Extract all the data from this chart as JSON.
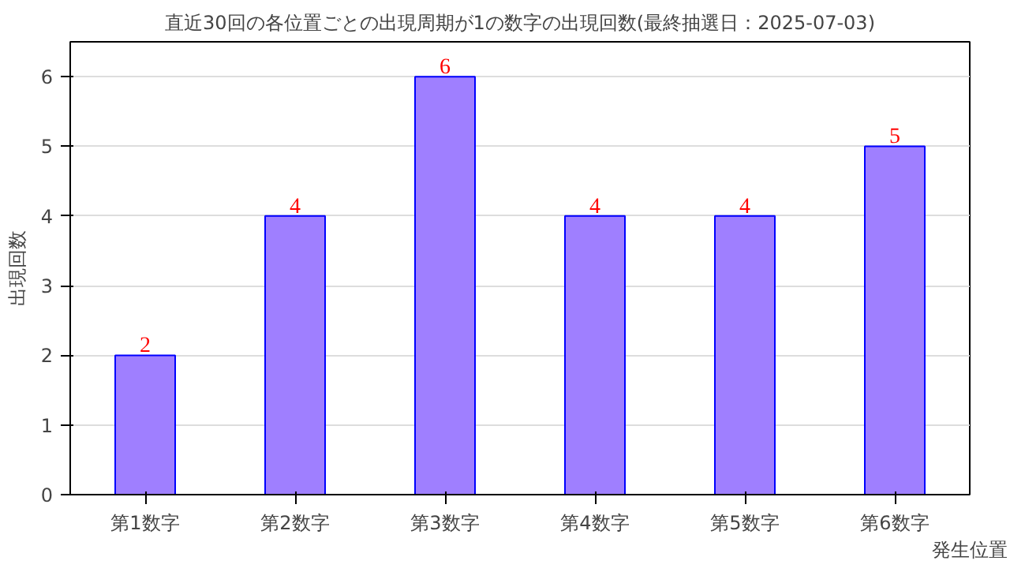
{
  "chart_data": {
    "type": "bar",
    "title": "直近30回の各位置ごとの出現周期が1の数字の出現回数(最終抽選日：2025-07-03)",
    "xlabel": "発生位置",
    "ylabel": "出現回数",
    "categories": [
      "第1数字",
      "第2数字",
      "第3数字",
      "第4数字",
      "第5数字",
      "第6数字"
    ],
    "values": [
      2,
      4,
      6,
      4,
      4,
      5
    ],
    "color": "#9f7fff",
    "ylim": [
      0,
      6.5
    ],
    "yticks": [
      0,
      1,
      2,
      3,
      4,
      5,
      6
    ],
    "grid": "y",
    "data_labels": true
  }
}
